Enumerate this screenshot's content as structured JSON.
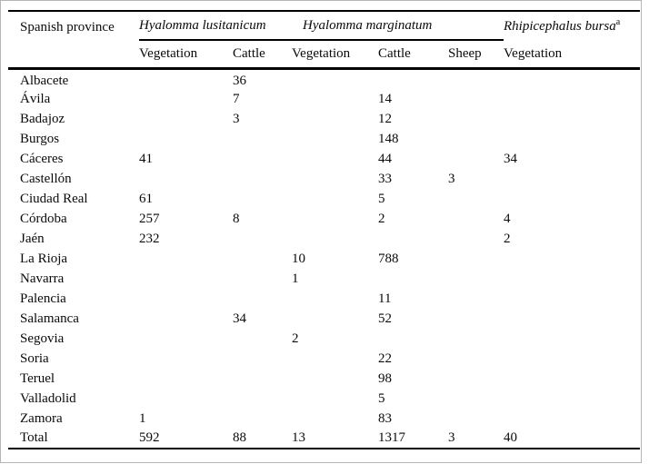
{
  "frame": {
    "border_color": "#b5b5b5",
    "background": "#ffffff"
  },
  "table": {
    "province_header": "Spanish province",
    "groups": [
      {
        "name": "Hyalomma lusitanicum",
        "sup": ""
      },
      {
        "name": "Hyalomma marginatum",
        "sup": ""
      },
      {
        "name": "Rhipicephalus bursa",
        "sup": "a"
      }
    ],
    "subcolumns": [
      "Vegetation",
      "Cattle",
      "Vegetation",
      "Cattle",
      "Sheep",
      "Vegetation"
    ],
    "rows": [
      {
        "province": "Albacete",
        "values": [
          "",
          "36",
          "",
          "",
          "",
          ""
        ]
      },
      {
        "province": "Ávila",
        "values": [
          "",
          "7",
          "",
          "14",
          "",
          ""
        ]
      },
      {
        "province": "Badajoz",
        "values": [
          "",
          "3",
          "",
          "12",
          "",
          ""
        ]
      },
      {
        "province": "Burgos",
        "values": [
          "",
          "",
          "",
          "148",
          "",
          ""
        ]
      },
      {
        "province": "Cáceres",
        "values": [
          "41",
          "",
          "",
          "44",
          "",
          "34"
        ]
      },
      {
        "province": "Castellón",
        "values": [
          "",
          "",
          "",
          "33",
          "3",
          ""
        ]
      },
      {
        "province": "Ciudad Real",
        "values": [
          "61",
          "",
          "",
          "5",
          "",
          ""
        ]
      },
      {
        "province": "Córdoba",
        "values": [
          "257",
          "8",
          "",
          "2",
          "",
          "4"
        ]
      },
      {
        "province": "Jaén",
        "values": [
          "232",
          "",
          "",
          "",
          "",
          "2"
        ]
      },
      {
        "province": "La Rioja",
        "values": [
          "",
          "",
          "10",
          "788",
          "",
          ""
        ]
      },
      {
        "province": "Navarra",
        "values": [
          "",
          "",
          "1",
          "",
          "",
          ""
        ]
      },
      {
        "province": "Palencia",
        "values": [
          "",
          "",
          "",
          "11",
          "",
          ""
        ]
      },
      {
        "province": "Salamanca",
        "values": [
          "",
          "34",
          "",
          "52",
          "",
          ""
        ]
      },
      {
        "province": "Segovia",
        "values": [
          "",
          "",
          "2",
          "",
          "",
          ""
        ]
      },
      {
        "province": "Soria",
        "values": [
          "",
          "",
          "",
          "22",
          "",
          ""
        ]
      },
      {
        "province": "Teruel",
        "values": [
          "",
          "",
          "",
          "98",
          "",
          ""
        ]
      },
      {
        "province": "Valladolid",
        "values": [
          "",
          "",
          "",
          "5",
          "",
          ""
        ]
      },
      {
        "province": "Zamora",
        "values": [
          "1",
          "",
          "",
          "83",
          "",
          ""
        ]
      }
    ],
    "total": {
      "province": "Total",
      "values": [
        "592",
        "88",
        "13",
        "1317",
        "3",
        "40"
      ]
    }
  },
  "chart_data": {
    "type": "table",
    "columns": [
      "Spanish province",
      "Hyalomma lusitanicum - Vegetation",
      "Hyalomma lusitanicum - Cattle",
      "Hyalomma marginatum - Vegetation",
      "Hyalomma marginatum - Cattle",
      "Hyalomma marginatum - Sheep",
      "Rhipicephalus bursa (a) - Vegetation"
    ],
    "rows": [
      [
        "Albacete",
        null,
        36,
        null,
        null,
        null,
        null
      ],
      [
        "Ávila",
        null,
        7,
        null,
        14,
        null,
        null
      ],
      [
        "Badajoz",
        null,
        3,
        null,
        12,
        null,
        null
      ],
      [
        "Burgos",
        null,
        null,
        null,
        148,
        null,
        null
      ],
      [
        "Cáceres",
        41,
        null,
        null,
        44,
        null,
        34
      ],
      [
        "Castellón",
        null,
        null,
        null,
        33,
        3,
        null
      ],
      [
        "Ciudad Real",
        61,
        null,
        null,
        5,
        null,
        null
      ],
      [
        "Córdoba",
        257,
        8,
        null,
        2,
        null,
        4
      ],
      [
        "Jaén",
        232,
        null,
        null,
        null,
        null,
        2
      ],
      [
        "La Rioja",
        null,
        null,
        10,
        788,
        null,
        null
      ],
      [
        "Navarra",
        null,
        null,
        1,
        null,
        null,
        null
      ],
      [
        "Palencia",
        null,
        null,
        null,
        11,
        null,
        null
      ],
      [
        "Salamanca",
        null,
        34,
        null,
        52,
        null,
        null
      ],
      [
        "Segovia",
        null,
        null,
        2,
        null,
        null,
        null
      ],
      [
        "Soria",
        null,
        null,
        null,
        22,
        null,
        null
      ],
      [
        "Teruel",
        null,
        null,
        null,
        98,
        null,
        null
      ],
      [
        "Valladolid",
        null,
        null,
        null,
        5,
        null,
        null
      ],
      [
        "Zamora",
        1,
        null,
        null,
        83,
        null,
        null
      ],
      [
        "Total",
        592,
        88,
        13,
        1317,
        3,
        40
      ]
    ]
  }
}
